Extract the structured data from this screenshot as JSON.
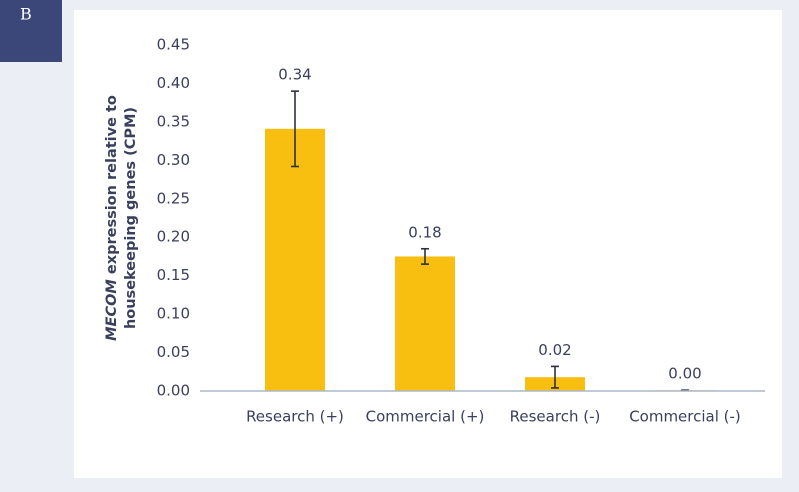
{
  "panel_label": "B",
  "chart_data": {
    "type": "bar",
    "ylabel": {
      "italic": "MECOM",
      "line1": " expression relative to",
      "line2": "housekeeping genes (CPM)"
    },
    "categories": [
      "Research (+)",
      "Commercial (+)",
      "Research (-)",
      "Commercial (-)"
    ],
    "values": [
      0.341,
      0.175,
      0.018,
      0.001
    ],
    "value_labels": [
      "0.34",
      "0.18",
      "0.02",
      "0.00"
    ],
    "errors": [
      0.049,
      0.01,
      0.014,
      0
    ],
    "color": "#f8bf10",
    "ylim": [
      0,
      0.45
    ],
    "yticks": [
      {
        "value": 0,
        "label": "0.00"
      },
      0.05,
      {
        "value": 0.1,
        "label": "0.10"
      },
      0.15,
      {
        "value": 0.2,
        "label": "0.20"
      },
      0.25,
      {
        "value": 0.3,
        "label": "0.30"
      },
      0.35,
      {
        "value": 0.4,
        "label": "0.40"
      },
      0.45
    ],
    "grid": false
  }
}
